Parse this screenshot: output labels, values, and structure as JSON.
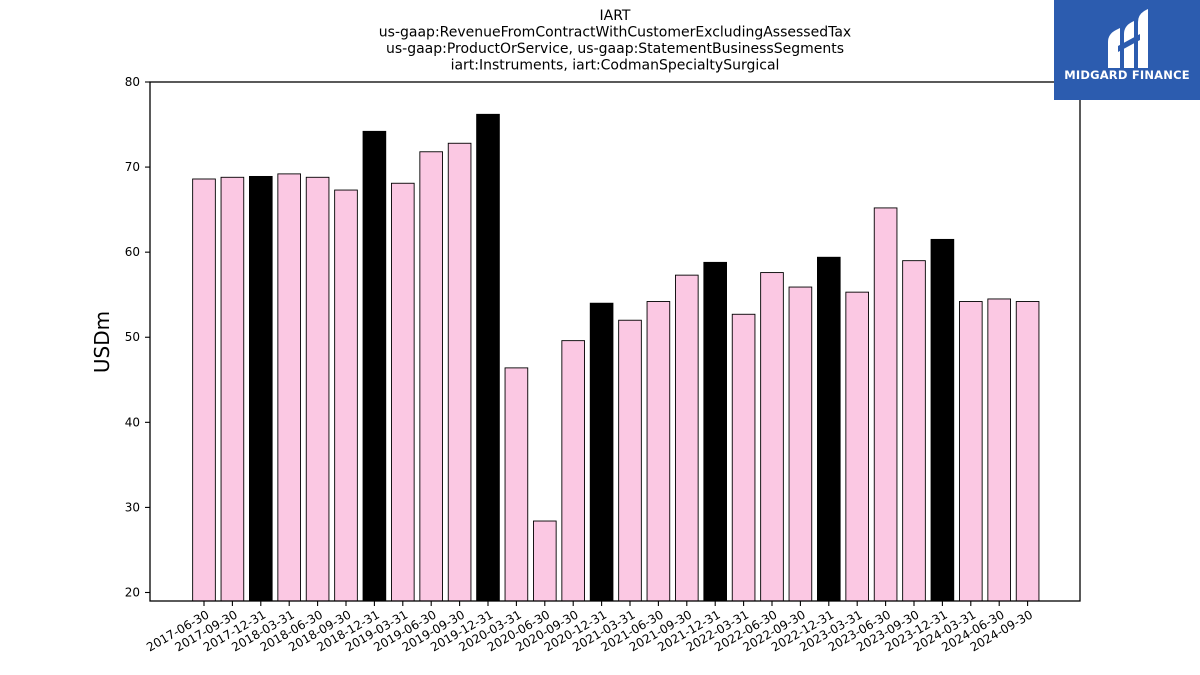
{
  "chart_data": {
    "type": "bar",
    "title_lines": [
      "IART",
      "us-gaap:RevenueFromContractWithCustomerExcludingAssessedTax",
      "us-gaap:ProductOrService, us-gaap:StatementBusinessSegments",
      "iart:Instruments, iart:CodmanSpecialtySurgical"
    ],
    "ylabel": "USDm",
    "xlabel": "",
    "ylim": [
      19,
      80
    ],
    "yticks": [
      20,
      30,
      40,
      50,
      60,
      70,
      80
    ],
    "categories": [
      "2017-06-30",
      "2017-09-30",
      "2017-12-31",
      "2018-03-31",
      "2018-06-30",
      "2018-09-30",
      "2018-12-31",
      "2019-03-31",
      "2019-06-30",
      "2019-09-30",
      "2019-12-31",
      "2020-03-31",
      "2020-06-30",
      "2020-09-30",
      "2020-12-31",
      "2021-03-31",
      "2021-06-30",
      "2021-09-30",
      "2021-12-31",
      "2022-03-31",
      "2022-06-30",
      "2022-09-30",
      "2022-12-31",
      "2023-03-31",
      "2023-06-30",
      "2023-09-30",
      "2023-12-31",
      "2024-03-31",
      "2024-06-30",
      "2024-09-30"
    ],
    "values": [
      68.6,
      68.8,
      68.9,
      69.2,
      68.8,
      67.3,
      74.2,
      68.1,
      71.8,
      72.8,
      76.2,
      46.4,
      28.4,
      49.6,
      54.0,
      52.0,
      54.2,
      57.3,
      58.8,
      52.7,
      57.6,
      55.9,
      59.4,
      55.3,
      65.2,
      59.0,
      61.5,
      54.2,
      54.5,
      54.2
    ],
    "highlight_quarter": "12-31",
    "colors": {
      "normal": "#fbc8e3",
      "highlight": "#000000",
      "edge": "#000000"
    },
    "grid": false
  },
  "logo": {
    "text": "MIDGARD FINANCE",
    "background": "#2c5caf"
  }
}
